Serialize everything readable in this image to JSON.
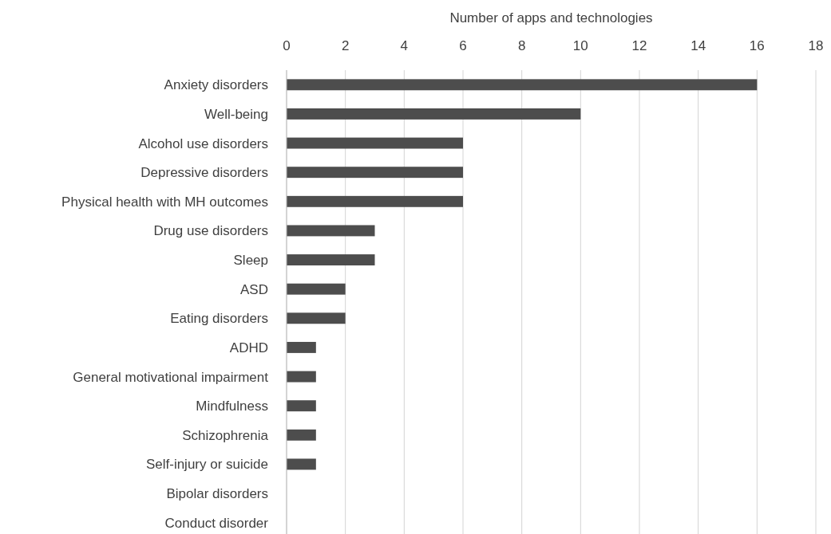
{
  "chart_data": {
    "type": "bar",
    "orientation": "horizontal",
    "xlabel": "Number of apps and technologies",
    "categories": [
      "Anxiety disorders",
      "Well-being",
      "Alcohol use disorders",
      "Depressive disorders",
      "Physical health with MH outcomes",
      "Drug use disorders",
      "Sleep",
      "ASD",
      "Eating disorders",
      "ADHD",
      "General motivational impairment",
      "Mindfulness",
      "Schizophrenia",
      "Self-injury or suicide",
      "Bipolar disorders",
      "Conduct disorder"
    ],
    "values": [
      16,
      10,
      6,
      6,
      6,
      3,
      3,
      2,
      2,
      1,
      1,
      1,
      1,
      1,
      0,
      0
    ],
    "color": "#4d4d4d",
    "xlim": [
      0,
      18
    ],
    "xticks": [
      0,
      2,
      4,
      6,
      8,
      10,
      12,
      14,
      16,
      18
    ],
    "grid": "x"
  }
}
